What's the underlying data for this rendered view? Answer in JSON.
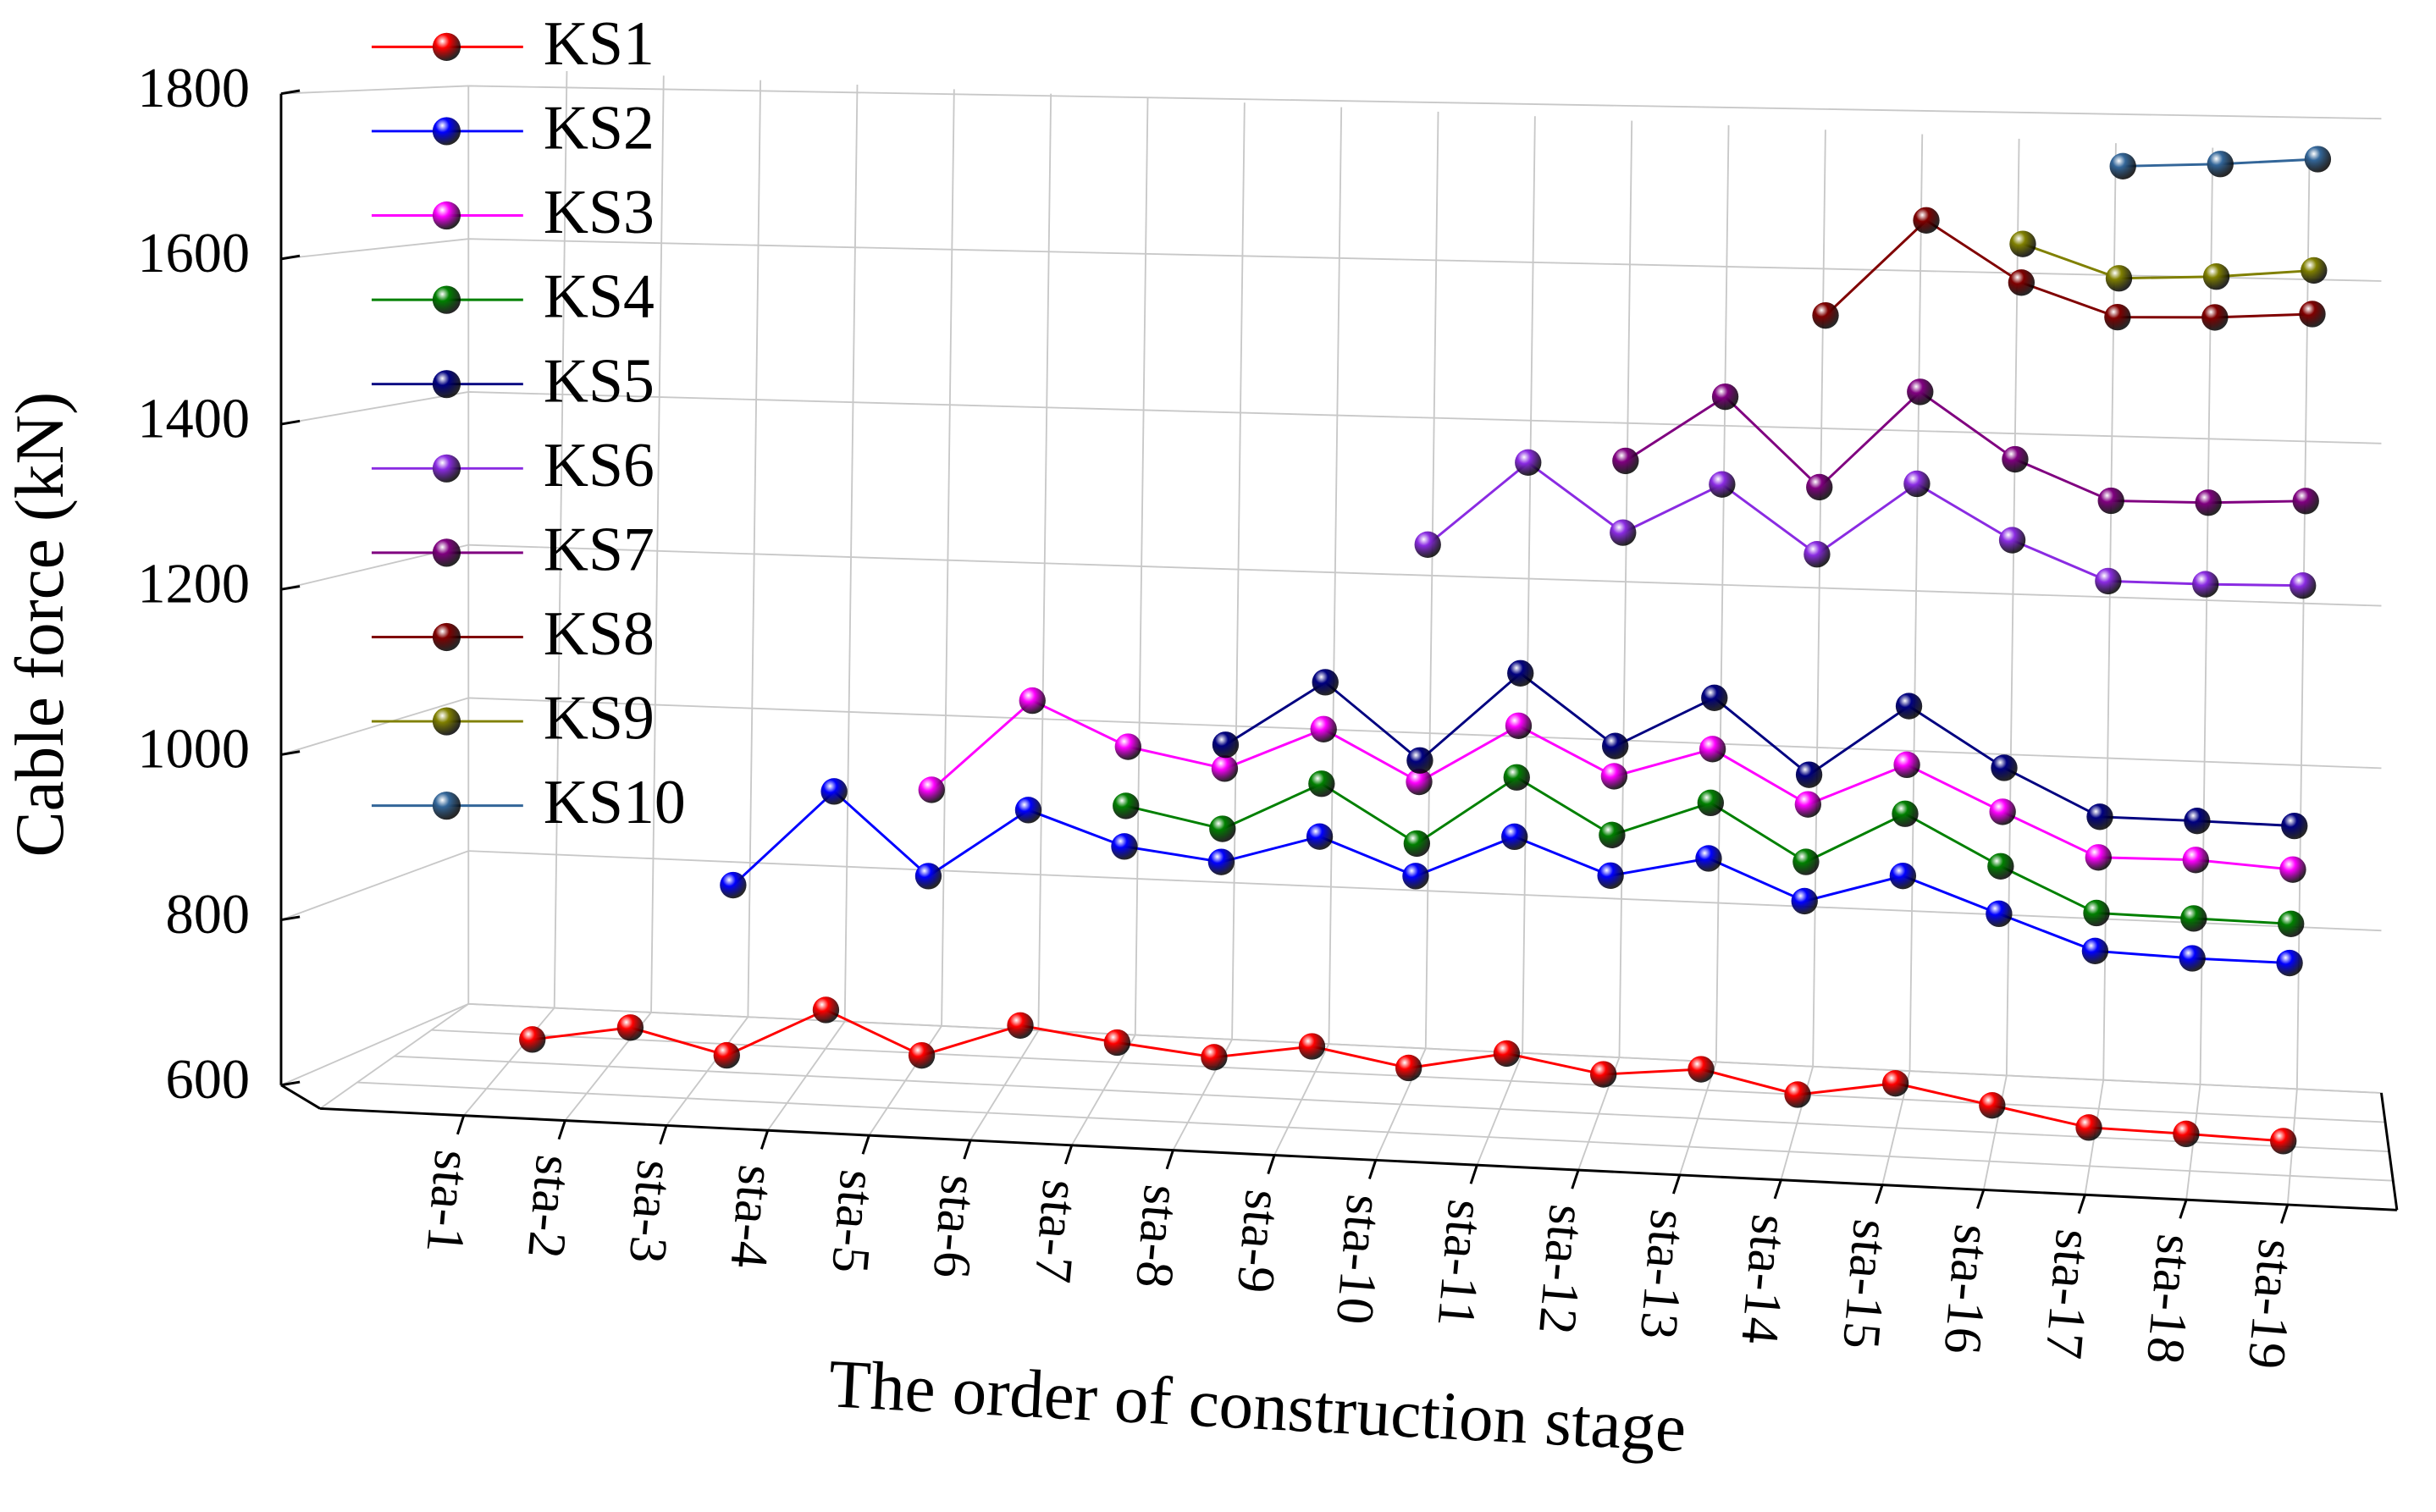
{
  "chart_data": {
    "type": "line3d",
    "y_label": "Cable force (kN)",
    "x_label": "The order of construction stage",
    "categories": [
      "sta-1",
      "sta-2",
      "sta-3",
      "sta-4",
      "sta-5",
      "sta-6",
      "sta-7",
      "sta-8",
      "sta-9",
      "sta-10",
      "sta-11",
      "sta-12",
      "sta-13",
      "sta-14",
      "sta-15",
      "sta-16",
      "sta-17",
      "sta-18",
      "sta-19"
    ],
    "ylim": [
      600,
      1800
    ],
    "yticks": [
      600,
      800,
      1000,
      1200,
      1400,
      1600,
      1800
    ],
    "grid": true,
    "legend": "upper left",
    "series": [
      {
        "name": "KS1",
        "color": "#ff0000",
        "values": [
          646,
          667,
          640,
          701,
          653,
          695,
          681,
          670,
          689,
          670,
          693,
          675,
          687,
          664,
          683,
          664,
          645,
          644,
          642
        ]
      },
      {
        "name": "KS2",
        "color": "#0000ff",
        "values": [
          null,
          null,
          845,
          963,
          867,
          951,
          913,
          900,
          935,
          894,
          945,
          905,
          930,
          886,
          920,
          882,
          845,
          842,
          842
        ]
      },
      {
        "name": "KS3",
        "color": "#ff00ff",
        "values": [
          null,
          null,
          null,
          null,
          970,
          1081,
          1031,
          1010,
          1061,
          1004,
          1074,
          1020,
          1056,
          997,
          1047,
          998,
          951,
          953,
          947
        ]
      },
      {
        "name": "KS4",
        "color": "#008000",
        "values": [
          null,
          null,
          null,
          null,
          null,
          null,
          961,
          939,
          997,
          932,
          1014,
          952,
          994,
          931,
          991,
          936,
          888,
          887,
          886
        ]
      },
      {
        "name": "KS5",
        "color": "#000080",
        "values": [
          null,
          null,
          null,
          null,
          null,
          null,
          null,
          1038,
          1116,
          1029,
          1135,
          1055,
          1115,
          1031,
          1114,
          1048,
          997,
          997,
          996
        ]
      },
      {
        "name": "KS6",
        "color": "#8a2be2",
        "values": [
          null,
          null,
          null,
          null,
          null,
          null,
          null,
          null,
          null,
          1281,
          1380,
          1302,
          1361,
          1284,
          1368,
          1307,
          1264,
          1264,
          1266
        ]
      },
      {
        "name": "KS7",
        "color": "#800080",
        "values": [
          null,
          null,
          null,
          null,
          null,
          null,
          null,
          null,
          null,
          null,
          null,
          1385,
          1462,
          1361,
          1473,
          1399,
          1355,
          1356,
          1361
        ]
      },
      {
        "name": "KS8",
        "color": "#800000",
        "values": [
          null,
          null,
          null,
          null,
          null,
          null,
          null,
          null,
          null,
          null,
          null,
          null,
          null,
          1558,
          1669,
          1600,
          1563,
          1565,
          1571
        ]
      },
      {
        "name": "KS9",
        "color": "#808000",
        "values": [
          null,
          null,
          null,
          null,
          null,
          null,
          null,
          null,
          null,
          null,
          null,
          null,
          null,
          null,
          null,
          1644,
          1607,
          1611,
          1620
        ]
      },
      {
        "name": "KS10",
        "color": "#336699",
        "values": [
          null,
          null,
          null,
          null,
          null,
          null,
          null,
          null,
          null,
          null,
          null,
          null,
          null,
          null,
          null,
          null,
          1734,
          1738,
          1745
        ]
      }
    ]
  }
}
